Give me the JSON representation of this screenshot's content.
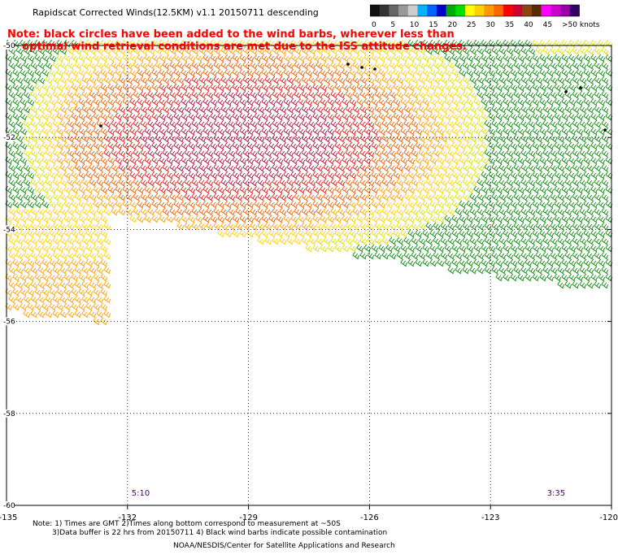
{
  "title": "Rapidscat Corrected Winds(12.5KM) v1.1 20150711 descending",
  "note_red_line1": "Note: black circles have been added to the wind barbs, wherever less than",
  "note_red_line2": "optimal wind retrieval conditions are met due to the ISS attitude changes.",
  "colorbar": {
    "labels": [
      "0",
      "5",
      "10",
      "15",
      "20",
      "25",
      "30",
      "35",
      "40",
      "45",
      ">50 knots"
    ],
    "colors": [
      "#111111",
      "#333333",
      "#666666",
      "#999999",
      "#cccccc",
      "#00b4ff",
      "#0064ff",
      "#0000cc",
      "#00aa00",
      "#00e000",
      "#ffff00",
      "#ffd000",
      "#ff9900",
      "#ff6600",
      "#ff0000",
      "#cc0033",
      "#8b4513",
      "#5a2a00",
      "#ff00ff",
      "#cc00cc",
      "#9900aa",
      "#330066"
    ]
  },
  "map": {
    "lon_ticks": [
      "-135",
      "-132",
      "-129",
      "-126",
      "-123",
      "-120"
    ],
    "lat_ticks": [
      "-50",
      "-52",
      "-54",
      "-56",
      "-58",
      "-60"
    ],
    "time_labels": [
      {
        "text": "5:10",
        "lon": -131.9
      },
      {
        "text": "3:35",
        "lon": -121.6
      }
    ]
  },
  "footer_notes_line1": "Note: 1) Times are GMT 2)Times along bottom correspond to measurement at ~50S",
  "footer_notes_line2": "3)Data buffer is 22 hrs from 20150711 4) Black wind barbs indicate possible contamination",
  "footer_credit": "NOAA/NESDIS/Center for Satellite Applications and Research"
}
